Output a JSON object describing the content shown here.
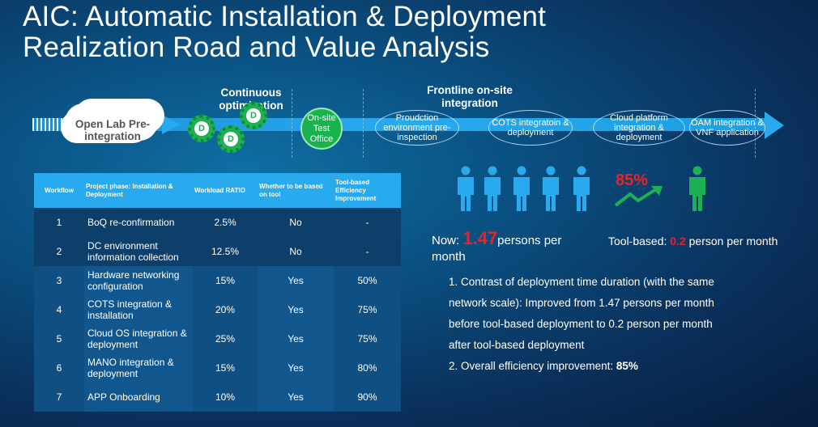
{
  "slide": {
    "title_line1": "AIC: Automatic Installation & Deployment",
    "title_line2": "Realization Road and Value Analysis"
  },
  "roadmap": {
    "open_lab": "Open Lab Pre-integration",
    "continuous": "Continuous optimization",
    "gear_letter": "D",
    "test_office": "On-site Test Office",
    "frontline": "Frontline on-site integration",
    "steps": [
      "Proudction environment pre-inspection",
      "COTS integratoin & deployment",
      "Cloud platform integration & deployment",
      "OAM integration & VNF application"
    ]
  },
  "table": {
    "headers": [
      "Workflow",
      "Project phase: Installation & Deployment",
      "Workload RATIO",
      "Whether to be based on tool",
      "Tool-based Efficiency Improvement"
    ],
    "rows": [
      [
        "1",
        "BoQ re-confirmation",
        "2.5%",
        "No",
        "-"
      ],
      [
        "2",
        "DC environment information collection",
        "12.5%",
        "No",
        "-"
      ],
      [
        "3",
        "Hardware networking configuration",
        "15%",
        "Yes",
        "50%"
      ],
      [
        "4",
        "COTS integration & installation",
        "20%",
        "Yes",
        "75%"
      ],
      [
        "5",
        "Cloud OS integration & deployment",
        "25%",
        "Yes",
        "75%"
      ],
      [
        "6",
        "MANO integration & deployment",
        "15%",
        "Yes",
        "80%"
      ],
      [
        "7",
        "APP Onboarding",
        "10%",
        "Yes",
        "90%"
      ]
    ]
  },
  "stats": {
    "percent": "85%",
    "now_prefix": "Now: ",
    "now_value": "1.47",
    "now_suffix": "persons per month",
    "tool_prefix": "Tool-based: ",
    "tool_value": "0.2",
    "tool_suffix": " person per month",
    "note1_l1": "1. Contrast of deployment time duration (with the same",
    "note1_l2": "network scale): Improved from 1.47 persons per month",
    "note1_l3": "before tool-based deployment to  0.2 person per month",
    "note1_l4": "after tool-based deployment",
    "note2_prefix": "2. Overall efficiency improvement: ",
    "note2_value": "85%"
  },
  "colors": {
    "accent": "#29a9ee",
    "person_blue": "#29a9ee",
    "person_green": "#1db054",
    "highlight_red": "#e8232a"
  }
}
